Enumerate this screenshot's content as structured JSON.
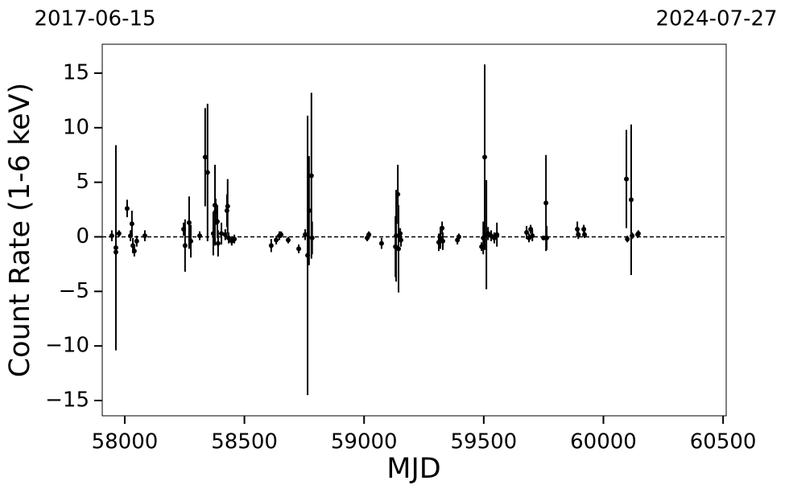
{
  "chart_data": {
    "type": "errorbar",
    "xlabel": "MJD",
    "ylabel": "Count Rate (1-6 keV)",
    "start_label": "2017-06-15",
    "end_label": "2024-07-27",
    "color": "#000000",
    "reference_line": 0,
    "xlim": [
      57906,
      60513
    ],
    "ylim": [
      -16.4,
      17.65
    ],
    "xticks": [
      58000,
      58500,
      59000,
      59500,
      60000,
      60500
    ],
    "yticks": [
      {
        "value": -15,
        "label": "−15"
      },
      {
        "value": -10,
        "label": "−10"
      },
      {
        "value": -5,
        "label": "−5"
      },
      0,
      5,
      10,
      15
    ],
    "x": [
      57946,
      57963,
      57963,
      57976,
      58010,
      58024,
      58030,
      58034,
      58040,
      58050,
      58084,
      58246,
      58252,
      58269,
      58276,
      58313,
      58336,
      58346,
      58370,
      58377,
      58380,
      58387,
      58390,
      58404,
      58420,
      58427,
      58430,
      58434,
      58447,
      58458,
      58612,
      58633,
      58646,
      58653,
      58683,
      58727,
      58754,
      58764,
      58770,
      58780,
      58783,
      59013,
      59020,
      59073,
      59131,
      59134,
      59141,
      59144,
      59151,
      59154,
      59312,
      59319,
      59326,
      59329,
      59390,
      59396,
      59491,
      59498,
      59504,
      59511,
      59518,
      59531,
      59544,
      59555,
      59679,
      59689,
      59696,
      59703,
      59750,
      59760,
      59763,
      59891,
      59895,
      59918,
      59921,
      60096,
      60100,
      60116,
      60120,
      60143,
      60146
    ],
    "y": [
      0.1,
      -1.0,
      -1.4,
      0.3,
      2.6,
      0.1,
      1.2,
      -0.8,
      -1.3,
      -0.4,
      0.1,
      0.7,
      -0.8,
      1.3,
      -0.4,
      0.1,
      7.3,
      5.9,
      0.3,
      2.9,
      2.3,
      1.4,
      -0.6,
      0.3,
      0.2,
      2.4,
      2.8,
      -0.1,
      -0.4,
      -0.2,
      -0.8,
      -0.3,
      0.1,
      0.2,
      -0.3,
      -1.1,
      0.2,
      -1.7,
      2.4,
      5.6,
      -0.1,
      -0.1,
      0.2,
      -0.6,
      -0.9,
      0.1,
      3.9,
      -1.1,
      0.3,
      -0.3,
      -0.5,
      -0.1,
      0.8,
      -0.4,
      -0.3,
      0,
      -0.9,
      -0.1,
      7.3,
      0.2,
      0.3,
      0.1,
      -0.1,
      0.2,
      0.4,
      -0.1,
      0.7,
      0.1,
      -0.1,
      3.1,
      -0.1,
      0.7,
      0.2,
      0.7,
      0.2,
      5.3,
      -0.2,
      3.4,
      0.1,
      0.2,
      0.3
    ],
    "yerr": [
      0.5,
      9.4,
      0.4,
      0.3,
      0.8,
      0.5,
      1.2,
      0.7,
      0.5,
      0.5,
      0.5,
      0.6,
      2.4,
      2.4,
      1.5,
      0.4,
      4.5,
      6.3,
      2.0,
      3.7,
      1.2,
      1.5,
      1.2,
      1.0,
      0.5,
      1.5,
      2.5,
      0.5,
      0.4,
      0.4,
      0.6,
      0.4,
      0.4,
      0.3,
      0.3,
      0.4,
      0.5,
      12.8,
      5.0,
      7.6,
      1.5,
      0.3,
      0.3,
      0.5,
      2.8,
      4.2,
      2.7,
      4.0,
      0.5,
      0.6,
      0.8,
      1.0,
      0.6,
      0.8,
      0.4,
      0.3,
      0.4,
      1.5,
      8.5,
      5.0,
      0.6,
      0.5,
      0.5,
      1.1,
      0.6,
      0.4,
      0.4,
      0.5,
      0.2,
      4.4,
      1.1,
      0.7,
      0.4,
      0.4,
      0.3,
      4.5,
      0.3,
      6.9,
      0.3,
      0.3,
      0.3
    ]
  }
}
